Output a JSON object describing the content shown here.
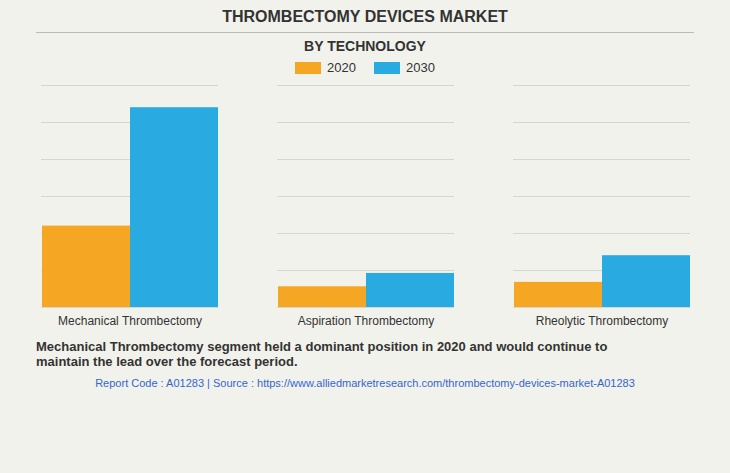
{
  "chart_data": {
    "type": "bar",
    "title": "THROMBECTOMY DEVICES MARKET",
    "subtitle": "BY TECHNOLOGY",
    "categories": [
      "Mechanical Thrombectomy",
      "Aspiration Thrombectomy",
      "Rheolytic Thrombectomy"
    ],
    "series": [
      {
        "name": "2020",
        "color": "#F5A623",
        "values": [
          5.5,
          1.4,
          1.7
        ]
      },
      {
        "name": "2030",
        "color": "#29ABE2",
        "values": [
          13.5,
          2.3,
          3.5
        ]
      }
    ],
    "ylim": [
      0,
      15
    ],
    "yticks": [
      0,
      2.5,
      5,
      7.5,
      10,
      12.5,
      15
    ],
    "grid": true,
    "legend": "top",
    "tick_labels": "x",
    "annotations": [
      "Mechanical Thrombectomy segment held a dominant position in 2020 and would continue to\nmaintain the lead over the forecast period.",
      "Report Code : A01283  |  Source : https://www.alliedmarketresearch.com/thrombectomy-devices-market-A01283"
    ]
  }
}
